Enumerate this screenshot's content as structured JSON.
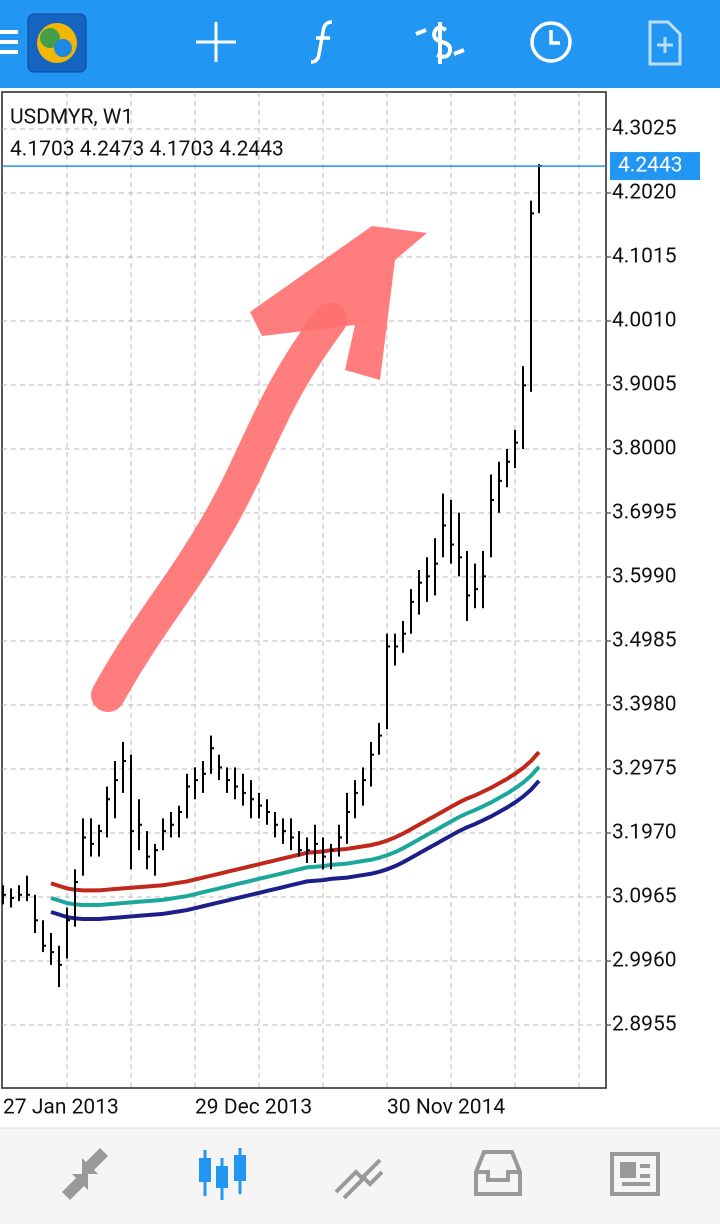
{
  "chart_data": {
    "type": "ohlc",
    "title": "USDMYR, W1",
    "subtitle": "4.1703 4.2473 4.1703 4.2443",
    "ylim": [
      2.7966,
      4.3606
    ],
    "yticks": [
      4.3025,
      {
        "value": 4.202,
        "label": "4.2020"
      },
      4.1015,
      {
        "value": 4.001,
        "label": "4.0010"
      },
      3.9005,
      {
        "value": 3.8,
        "label": "3.8000"
      },
      3.6995,
      {
        "value": 3.599,
        "label": "3.5990"
      },
      3.4985,
      {
        "value": 3.398,
        "label": "3.3980"
      },
      3.2975,
      {
        "value": 3.197,
        "label": "3.1970"
      },
      3.0965,
      {
        "value": 2.996,
        "label": "2.9960"
      },
      2.8955
    ],
    "grid": true,
    "last_price": 4.2443,
    "bar_color": "#000000",
    "categories": [
      "27 Jan 2013",
      null,
      null,
      null,
      null,
      null,
      null,
      null,
      null,
      null,
      null,
      null,
      null,
      null,
      null,
      null,
      null,
      null,
      null,
      null,
      null,
      null,
      null,
      null,
      "29 Dec 2013",
      null,
      null,
      null,
      null,
      null,
      null,
      null,
      null,
      null,
      null,
      null,
      null,
      null,
      null,
      null,
      null,
      null,
      null,
      null,
      null,
      null,
      null,
      null,
      "30 Nov 2014",
      null,
      null,
      null,
      null,
      null,
      null,
      null,
      null,
      null,
      null,
      null,
      null,
      null,
      null,
      null,
      null,
      null,
      null,
      null
    ],
    "high": [
      3.115,
      3.11,
      3.115,
      3.13,
      3.1,
      3.06,
      3.04,
      3.02,
      3.08,
      3.14,
      3.22,
      3.22,
      3.21,
      3.27,
      3.31,
      3.34,
      3.32,
      3.25,
      3.2,
      3.18,
      3.22,
      3.23,
      3.24,
      3.29,
      3.3,
      3.31,
      3.35,
      3.32,
      3.3,
      3.3,
      3.29,
      3.28,
      3.26,
      3.25,
      3.23,
      3.22,
      3.22,
      3.2,
      3.19,
      3.21,
      3.19,
      3.18,
      3.21,
      3.26,
      3.28,
      3.3,
      3.34,
      3.37,
      3.51,
      3.51,
      3.53,
      3.58,
      3.61,
      3.63,
      3.66,
      3.73,
      3.72,
      3.7,
      3.64,
      3.62,
      3.64,
      3.76,
      3.78,
      3.8,
      3.83,
      3.93,
      4.19,
      4.2473
    ],
    "low": [
      3.085,
      3.08,
      3.09,
      3.09,
      3.04,
      3.01,
      2.99,
      2.955,
      3.0,
      3.05,
      3.13,
      3.16,
      3.16,
      3.19,
      3.22,
      3.26,
      3.14,
      3.17,
      3.14,
      3.13,
      3.17,
      3.19,
      3.19,
      3.22,
      3.25,
      3.26,
      3.29,
      3.28,
      3.26,
      3.25,
      3.24,
      3.22,
      3.22,
      3.21,
      3.19,
      3.18,
      3.17,
      3.16,
      3.15,
      3.15,
      3.14,
      3.14,
      3.16,
      3.18,
      3.22,
      3.24,
      3.27,
      3.32,
      3.36,
      3.46,
      3.48,
      3.51,
      3.54,
      3.56,
      3.57,
      3.63,
      3.62,
      3.6,
      3.53,
      3.55,
      3.55,
      3.63,
      3.7,
      3.74,
      3.77,
      3.8,
      3.89,
      4.1703
    ],
    "close": [
      3.1,
      3.095,
      3.1,
      3.1,
      3.06,
      3.02,
      3.01,
      2.99,
      3.06,
      3.12,
      3.19,
      3.18,
      3.2,
      3.25,
      3.28,
      3.31,
      3.2,
      3.21,
      3.16,
      3.17,
      3.2,
      3.21,
      3.23,
      3.27,
      3.28,
      3.29,
      3.33,
      3.3,
      3.28,
      3.27,
      3.26,
      3.25,
      3.24,
      3.23,
      3.21,
      3.2,
      3.19,
      3.17,
      3.17,
      3.18,
      3.16,
      3.17,
      3.19,
      3.23,
      3.26,
      3.28,
      3.32,
      3.35,
      3.49,
      3.49,
      3.51,
      3.56,
      3.59,
      3.6,
      3.62,
      3.68,
      3.65,
      3.63,
      3.57,
      3.58,
      3.6,
      3.72,
      3.75,
      3.78,
      3.81,
      3.9,
      4.17,
      4.2443
    ],
    "moving_averages": [
      {
        "color": "#c0281c",
        "values": [
          null,
          null,
          null,
          null,
          null,
          null,
          3.118,
          3.114,
          3.11,
          3.108,
          3.107,
          3.107,
          3.107,
          3.108,
          3.109,
          3.11,
          3.111,
          3.112,
          3.113,
          3.114,
          3.115,
          3.117,
          3.119,
          3.121,
          3.124,
          3.127,
          3.13,
          3.133,
          3.136,
          3.139,
          3.142,
          3.145,
          3.148,
          3.151,
          3.154,
          3.157,
          3.16,
          3.163,
          3.166,
          3.167,
          3.168,
          3.17,
          3.171,
          3.172,
          3.174,
          3.176,
          3.178,
          3.181,
          3.185,
          3.19,
          3.196,
          3.203,
          3.21,
          3.217,
          3.224,
          3.231,
          3.238,
          3.245,
          3.251,
          3.256,
          3.262,
          3.268,
          3.275,
          3.282,
          3.29,
          3.299,
          3.31,
          3.324
        ]
      },
      {
        "color": "#1aa89a",
        "values": [
          null,
          null,
          null,
          null,
          null,
          null,
          3.095,
          3.091,
          3.087,
          3.085,
          3.084,
          3.084,
          3.084,
          3.085,
          3.086,
          3.087,
          3.088,
          3.089,
          3.09,
          3.091,
          3.092,
          3.094,
          3.096,
          3.098,
          3.101,
          3.104,
          3.107,
          3.11,
          3.113,
          3.116,
          3.119,
          3.122,
          3.125,
          3.128,
          3.131,
          3.134,
          3.137,
          3.14,
          3.143,
          3.144,
          3.145,
          3.147,
          3.148,
          3.149,
          3.151,
          3.153,
          3.155,
          3.158,
          3.162,
          3.167,
          3.173,
          3.18,
          3.187,
          3.194,
          3.201,
          3.208,
          3.215,
          3.222,
          3.228,
          3.233,
          3.239,
          3.245,
          3.252,
          3.259,
          3.267,
          3.276,
          3.287,
          3.301
        ]
      },
      {
        "color": "#1c1f8a",
        "values": [
          null,
          null,
          null,
          null,
          null,
          null,
          3.073,
          3.069,
          3.065,
          3.063,
          3.062,
          3.062,
          3.062,
          3.063,
          3.064,
          3.065,
          3.066,
          3.067,
          3.068,
          3.069,
          3.07,
          3.072,
          3.074,
          3.076,
          3.079,
          3.082,
          3.085,
          3.088,
          3.091,
          3.094,
          3.097,
          3.1,
          3.103,
          3.106,
          3.109,
          3.112,
          3.115,
          3.118,
          3.121,
          3.122,
          3.123,
          3.125,
          3.126,
          3.127,
          3.129,
          3.131,
          3.133,
          3.136,
          3.14,
          3.145,
          3.151,
          3.158,
          3.165,
          3.172,
          3.179,
          3.186,
          3.193,
          3.2,
          3.206,
          3.211,
          3.217,
          3.223,
          3.23,
          3.237,
          3.245,
          3.254,
          3.265,
          3.279
        ]
      }
    ]
  }
}
